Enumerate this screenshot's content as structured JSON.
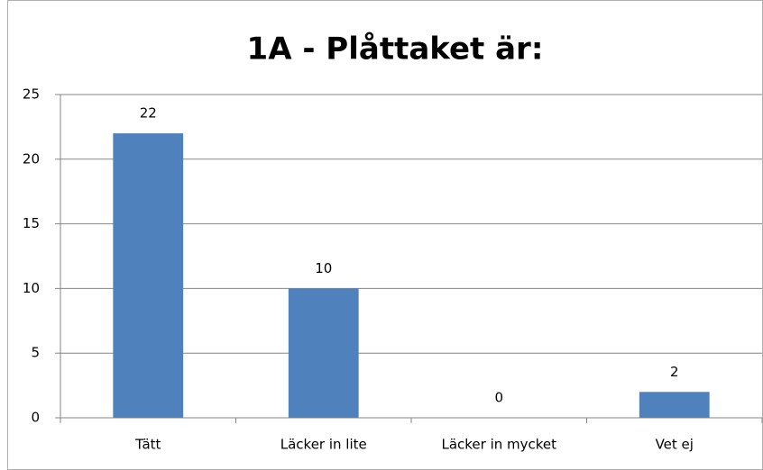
{
  "chart_data": {
    "type": "bar",
    "title": "1A - Plåttaket är:",
    "categories": [
      "Tätt",
      "Läcker in lite",
      "Läcker in mycket",
      "Vet ej"
    ],
    "values": [
      22,
      10,
      0,
      2
    ],
    "color": "#4f81bd",
    "ylim": [
      0,
      25
    ],
    "yticks": [
      0,
      5,
      10,
      15,
      20,
      25
    ],
    "grid": true
  }
}
